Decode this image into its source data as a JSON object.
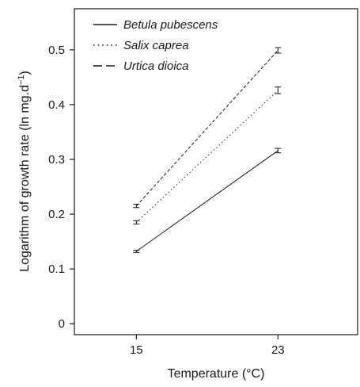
{
  "chart_data": {
    "type": "line",
    "title": "",
    "xlabel": "Temperature (°C)",
    "ylabel_main": "Logarithm of growth rate (ln mg.d",
    "ylabel_sup": "−1",
    "ylabel_close": ")",
    "x": [
      15,
      23
    ],
    "x_tick_labels": [
      "15",
      "23"
    ],
    "xlim": [
      11.5,
      27.5
    ],
    "ylim": [
      -0.02,
      0.575
    ],
    "y_ticks": [
      0,
      0.1,
      0.2,
      0.3,
      0.4,
      0.5
    ],
    "y_tick_labels": [
      "0",
      "0.1",
      "0.2",
      "0.3",
      "0.4",
      "0.5"
    ],
    "grid": false,
    "legend_position": "top-left",
    "series": [
      {
        "name": "Betula pubescens",
        "dash": "solid",
        "values": [
          0.132,
          0.316
        ],
        "errors": [
          0.002,
          0.004
        ]
      },
      {
        "name": "Salix caprea",
        "dash": "dotted",
        "values": [
          0.185,
          0.426
        ],
        "errors": [
          0.003,
          0.006
        ]
      },
      {
        "name": "Urtica dioica",
        "dash": "dashed",
        "values": [
          0.215,
          0.499
        ],
        "errors": [
          0.003,
          0.005
        ]
      }
    ]
  }
}
